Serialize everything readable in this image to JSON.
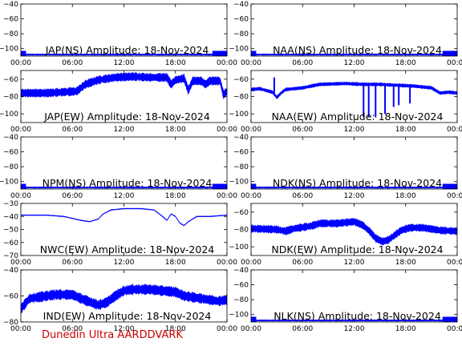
{
  "footer": "Dunedin Ultra AARDDVARK",
  "colors": {
    "trace": "#0000ff",
    "axes": "#000000",
    "footer": "#cc0000"
  },
  "chart_data": [
    {
      "type": "line",
      "title": "JAP(NS) Amplitude: 18-Nov-2024",
      "x_ticks": [
        "00:00",
        "06:00",
        "12:00",
        "18:00",
        "00:00"
      ],
      "ylim": [
        -110,
        -40
      ],
      "y_ticks": [
        -100,
        -80,
        -60,
        -40
      ],
      "profile": [
        [
          0,
          -108
        ],
        [
          24,
          -108
        ]
      ],
      "noise": 2,
      "spans": [
        [
          0,
          0.6,
          -112,
          -103
        ],
        [
          22.3,
          24,
          -112,
          -103
        ]
      ],
      "spikes": []
    },
    {
      "type": "line",
      "title": "NAA(NS) Amplitude: 18-Nov-2024",
      "x_ticks": [
        "00:00",
        "06:00",
        "12:00",
        "18:00",
        "00:00"
      ],
      "ylim": [
        -110,
        -40
      ],
      "y_ticks": [
        -100,
        -80,
        -60,
        -40
      ],
      "profile": [
        [
          0,
          -108
        ],
        [
          24,
          -108
        ]
      ],
      "noise": 2,
      "spans": [
        [
          0,
          0.6,
          -112,
          -103
        ],
        [
          22.3,
          24,
          -112,
          -103
        ]
      ],
      "spikes": []
    },
    {
      "type": "line",
      "title": "JAP(EW) Amplitude: 18-Nov-2024",
      "x_ticks": [
        "00:00",
        "06:00",
        "12:00",
        "18:00",
        "00:00"
      ],
      "ylim": [
        -110,
        -50
      ],
      "y_ticks": [
        -100,
        -80,
        -60
      ],
      "profile": [
        [
          0,
          -76
        ],
        [
          3,
          -76
        ],
        [
          6.5,
          -74
        ],
        [
          7.5,
          -66
        ],
        [
          9,
          -61
        ],
        [
          11,
          -58
        ],
        [
          13,
          -57
        ],
        [
          15,
          -58
        ],
        [
          17,
          -58
        ],
        [
          17.5,
          -66
        ],
        [
          18,
          -61
        ],
        [
          19,
          -59
        ],
        [
          19.5,
          -73
        ],
        [
          20,
          -62
        ],
        [
          21,
          -62
        ],
        [
          21.5,
          -66
        ],
        [
          22,
          -62
        ],
        [
          23.2,
          -62
        ],
        [
          23.6,
          -78
        ],
        [
          24,
          -74
        ]
      ],
      "noise": 10,
      "spans": [],
      "spikes": []
    },
    {
      "type": "line",
      "title": "NAA(EW) Amplitude: 18-Nov-2024",
      "x_ticks": [
        "00:00",
        "06:00",
        "12:00",
        "18:00",
        "00:00"
      ],
      "ylim": [
        -110,
        -50
      ],
      "y_ticks": [
        -100,
        -80,
        -60
      ],
      "profile": [
        [
          0,
          -72
        ],
        [
          1,
          -71
        ],
        [
          2.5,
          -75
        ],
        [
          3,
          -81
        ],
        [
          3.5,
          -76
        ],
        [
          4,
          -72
        ],
        [
          6,
          -70
        ],
        [
          8,
          -66
        ],
        [
          11,
          -65
        ],
        [
          13,
          -66
        ],
        [
          15,
          -66
        ],
        [
          17,
          -67
        ],
        [
          19,
          -68
        ],
        [
          21,
          -70
        ],
        [
          22,
          -76
        ],
        [
          23,
          -75
        ],
        [
          24,
          -76
        ]
      ],
      "noise": 4,
      "spans": [],
      "spikes": [
        [
          2.7,
          -58
        ],
        [
          13.1,
          -104
        ],
        [
          13.7,
          -104
        ],
        [
          14.5,
          -104
        ],
        [
          15.6,
          -100
        ],
        [
          16.6,
          -92
        ],
        [
          17.2,
          -90
        ],
        [
          18.5,
          -88
        ]
      ]
    },
    {
      "type": "line",
      "title": "NPM(NS) Amplitude: 18-Nov-2024",
      "x_ticks": [
        "00:00",
        "06:00",
        "12:00",
        "18:00",
        "00:00"
      ],
      "ylim": [
        -110,
        -40
      ],
      "y_ticks": [
        -100,
        -80,
        -60,
        -40
      ],
      "profile": [
        [
          0,
          -108
        ],
        [
          24,
          -108
        ]
      ],
      "noise": 2,
      "spans": [
        [
          0,
          0.6,
          -112,
          -103
        ],
        [
          22.3,
          24,
          -112,
          -103
        ]
      ],
      "spikes": []
    },
    {
      "type": "line",
      "title": "NDK(NS) Amplitude: 18-Nov-2024",
      "x_ticks": [
        "00:00",
        "06:00",
        "12:00",
        "18:00",
        "00:00"
      ],
      "ylim": [
        -110,
        -40
      ],
      "y_ticks": [
        -100,
        -80,
        -60,
        -40
      ],
      "profile": [
        [
          0,
          -108
        ],
        [
          24,
          -108
        ]
      ],
      "noise": 2,
      "spans": [
        [
          0,
          0.6,
          -112,
          -103
        ],
        [
          22.3,
          24,
          -112,
          -103
        ]
      ],
      "spikes": []
    },
    {
      "type": "line",
      "title": "NWC(EW) Amplitude: 18-Nov-2024",
      "x_ticks": [
        "00:00",
        "06:00",
        "12:00",
        "18:00",
        "00:00"
      ],
      "ylim": [
        -70,
        -30
      ],
      "y_ticks": [
        -70,
        -60,
        -50,
        -40,
        -30
      ],
      "profile": [
        [
          0,
          -39
        ],
        [
          3,
          -39
        ],
        [
          5,
          -40
        ],
        [
          7,
          -43
        ],
        [
          8,
          -44
        ],
        [
          9,
          -42
        ],
        [
          9.6,
          -38
        ],
        [
          10.5,
          -35
        ],
        [
          12,
          -34
        ],
        [
          14,
          -34
        ],
        [
          15.5,
          -35
        ],
        [
          16.5,
          -40
        ],
        [
          17,
          -43
        ],
        [
          17.5,
          -38
        ],
        [
          18,
          -40
        ],
        [
          18.5,
          -45
        ],
        [
          19,
          -47
        ],
        [
          19.5,
          -44
        ],
        [
          20.5,
          -40
        ],
        [
          22,
          -40
        ],
        [
          24,
          -39
        ]
      ],
      "noise": 0.6,
      "spans": [],
      "spikes": []
    },
    {
      "type": "line",
      "title": "NDK(EW) Amplitude: 18-Nov-2024",
      "x_ticks": [
        "00:00",
        "06:00",
        "12:00",
        "18:00",
        "00:00"
      ],
      "ylim": [
        -110,
        -50
      ],
      "y_ticks": [
        -100,
        -80,
        -60
      ],
      "profile": [
        [
          0,
          -79
        ],
        [
          3,
          -80
        ],
        [
          4,
          -82
        ],
        [
          5,
          -79
        ],
        [
          7,
          -76
        ],
        [
          8,
          -73
        ],
        [
          10,
          -73
        ],
        [
          12,
          -71
        ],
        [
          13,
          -75
        ],
        [
          13.8,
          -82
        ],
        [
          14.5,
          -90
        ],
        [
          15.3,
          -94
        ],
        [
          16,
          -92
        ],
        [
          16.8,
          -86
        ],
        [
          17.5,
          -81
        ],
        [
          18.5,
          -78
        ],
        [
          20,
          -78
        ],
        [
          22,
          -81
        ],
        [
          24,
          -82
        ]
      ],
      "noise": 9,
      "spans": [],
      "spikes": []
    },
    {
      "type": "line",
      "title": "IND(EW) Amplitude: 18-Nov-2024",
      "x_ticks": [
        "00:00",
        "06:00",
        "12:00",
        "18:00",
        "00:00"
      ],
      "ylim": [
        -80,
        -40
      ],
      "y_ticks": [
        -80,
        -60,
        -40
      ],
      "profile": [
        [
          0,
          -70
        ],
        [
          1,
          -62
        ],
        [
          4,
          -59
        ],
        [
          6,
          -59
        ],
        [
          7,
          -62
        ],
        [
          9,
          -67
        ],
        [
          10,
          -65
        ],
        [
          11,
          -60
        ],
        [
          12,
          -56
        ],
        [
          13,
          -55
        ],
        [
          15,
          -55
        ],
        [
          16.5,
          -56
        ],
        [
          18,
          -57
        ],
        [
          19,
          -60
        ],
        [
          21,
          -62
        ],
        [
          23,
          -64
        ],
        [
          24,
          -63
        ]
      ],
      "noise": 8,
      "spans": [],
      "spikes": []
    },
    {
      "type": "line",
      "title": "NLK(NS) Amplitude: 18-Nov-2024",
      "x_ticks": [
        "00:00",
        "06:00",
        "12:00",
        "18:00",
        "00:00"
      ],
      "ylim": [
        -110,
        -40
      ],
      "y_ticks": [
        -100,
        -80,
        -60,
        -40
      ],
      "profile": [
        [
          0,
          -108
        ],
        [
          24,
          -108
        ]
      ],
      "noise": 2,
      "spans": [
        [
          0,
          0.6,
          -112,
          -103
        ],
        [
          22.3,
          24,
          -112,
          -103
        ]
      ],
      "spikes": []
    }
  ]
}
